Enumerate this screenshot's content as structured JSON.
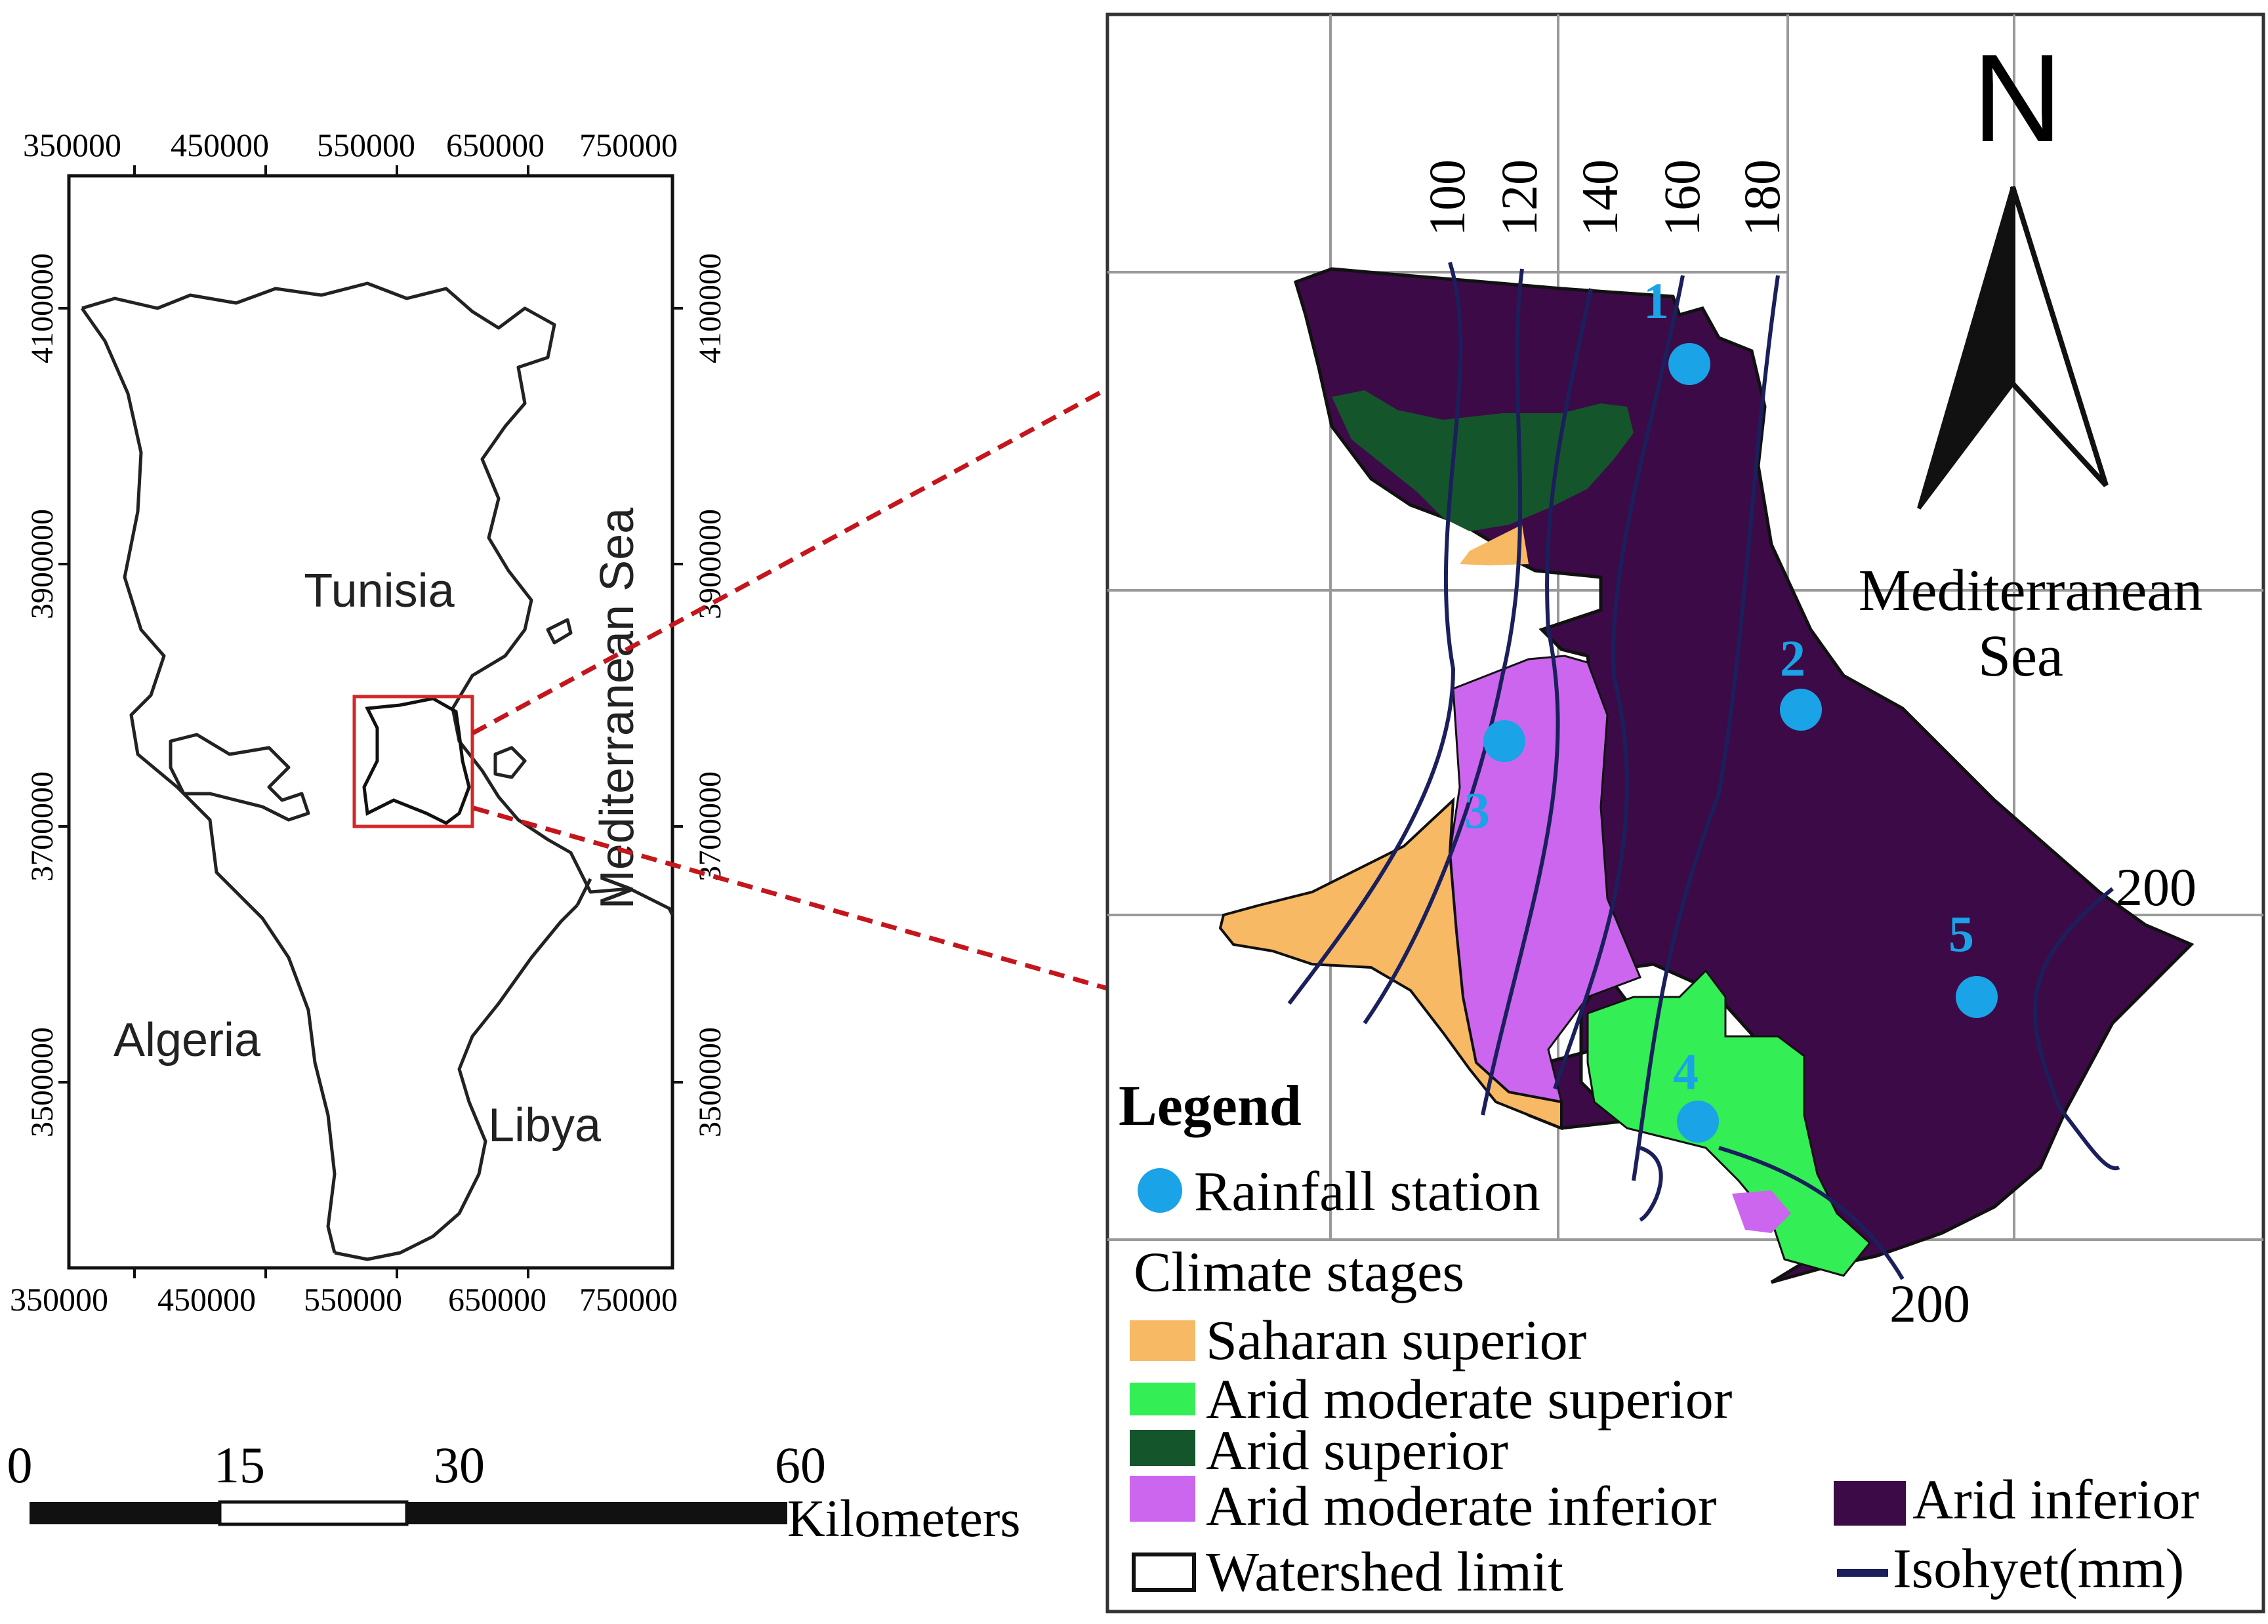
{
  "tunisia_map": {
    "top_ticks": [
      "350000",
      "450000",
      "550000",
      "650000",
      "750000"
    ],
    "bottom_ticks": [
      "350000",
      "450000",
      "550000",
      "650000",
      "750000"
    ],
    "left_ticks": [
      "4100000",
      "3900000",
      "3700000",
      "3500000"
    ],
    "right_ticks": [
      "4100000",
      "3900000",
      "3700000",
      "3500000"
    ],
    "labels": {
      "tunisia": "Tunisia",
      "algeria": "Algeria",
      "libya": "Libya",
      "sea": "Mediterranean Sea"
    }
  },
  "scale_bar": {
    "ticks": [
      "0",
      "15",
      "30",
      "60"
    ],
    "unit": "Kilometers"
  },
  "detail_map": {
    "north_label": "N",
    "sea_line1": "Mediterranean",
    "sea_line2": "Sea",
    "isohyet_labels": [
      "100",
      "120",
      "140",
      "160",
      "180"
    ],
    "isohyet_200_east": "200",
    "isohyet_200_south": "200",
    "stations": [
      "1",
      "2",
      "3",
      "4",
      "5"
    ]
  },
  "legend": {
    "title": "Legend",
    "rainfall_station": "Rainfall station",
    "climate_stages_title": "Climate stages",
    "items": {
      "saharan_superior": "Saharan superior",
      "arid_moderate_superior": "Arid moderate superior",
      "arid_superior": "Arid superior",
      "arid_moderate_inferior": "Arid moderate inferior",
      "arid_inferior": "Arid inferior"
    },
    "watershed_limit": "Watershed limit",
    "isohyet": "Isohyet(mm)"
  },
  "colors": {
    "saharan_superior": "#f7b963",
    "arid_moderate_superior": "#33ee55",
    "arid_superior": "#14552b",
    "arid_moderate_inferior": "#cc66ee",
    "arid_inferior": "#3c0a47",
    "station": "#1aa3e6",
    "isohyet": "#1b1f5c",
    "arrow": "#c4161c"
  }
}
